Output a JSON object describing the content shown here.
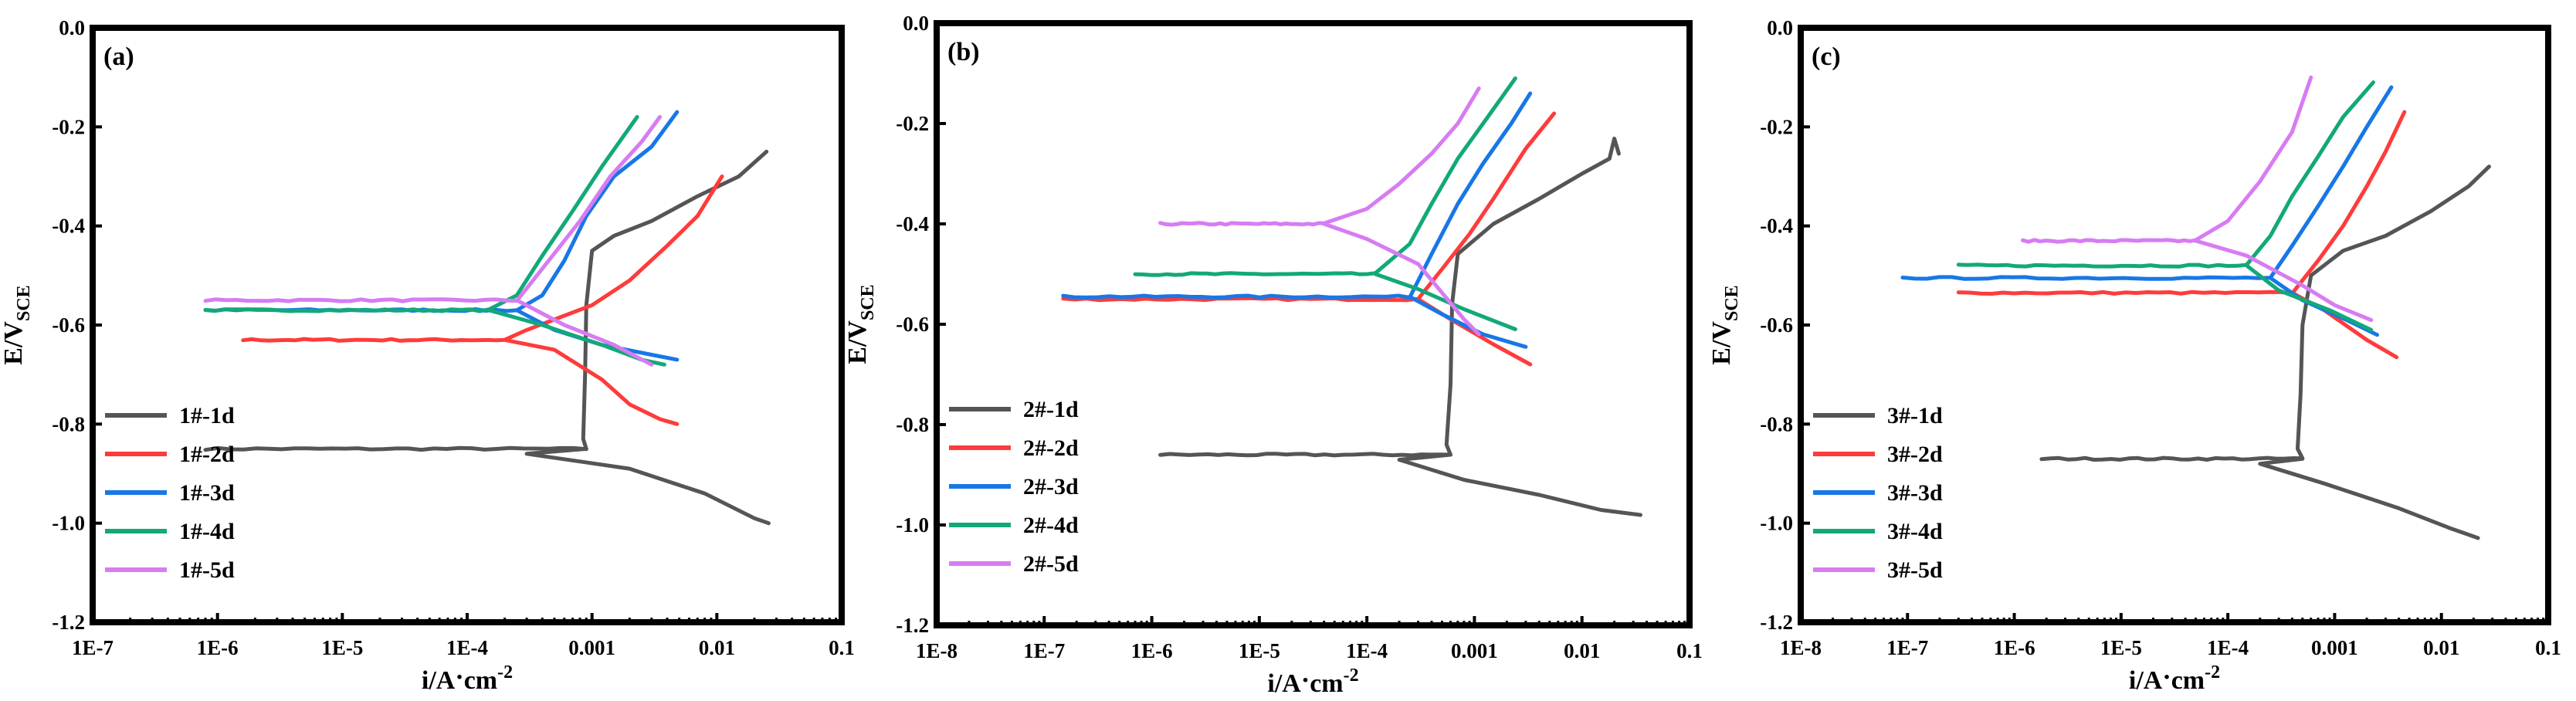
{
  "chart_data": [
    {
      "type": "line",
      "panel_label": "(a)",
      "xscale": "log",
      "xlim": [
        1e-07,
        0.1
      ],
      "ylim": [
        -1.2,
        0.0
      ],
      "xticks": [
        "1E-7",
        "1E-6",
        "1E-5",
        "1E-4",
        "0.001",
        "0.01",
        "0.1"
      ],
      "yticks": [
        "0.0",
        "-0.2",
        "-0.4",
        "-0.6",
        "-0.8",
        "-1.0",
        "-1.2"
      ],
      "xlabel": {
        "main": "i/A",
        "dot": "·",
        "unit": "cm",
        "exp": "-2"
      },
      "ylabel": {
        "main": "E/V",
        "sub": "SCE"
      },
      "legend_position": "bottom-left",
      "series": [
        {
          "name": "1#-1d",
          "color": "#555555",
          "ecorr": -0.85,
          "icorr": 0.0009,
          "x0": 8e-07,
          "anodic": [
            [
              0.00085,
              -0.83
            ],
            [
              0.00088,
              -0.7
            ],
            [
              0.0009,
              -0.56
            ],
            [
              0.001,
              -0.45
            ],
            [
              0.0015,
              -0.42
            ],
            [
              0.003,
              -0.39
            ],
            [
              0.007,
              -0.34
            ],
            [
              0.015,
              -0.3
            ],
            [
              0.025,
              -0.25
            ]
          ],
          "cathodic": [
            [
              0.0003,
              -0.86
            ],
            [
              0.002,
              -0.89
            ],
            [
              0.008,
              -0.94
            ],
            [
              0.02,
              -0.99
            ],
            [
              0.026,
              -1.0
            ]
          ]
        },
        {
          "name": "1#-2d",
          "color": "#ff3b3b",
          "ecorr": -0.63,
          "icorr": 0.0002,
          "x0": 1.6e-06,
          "anodic": [
            [
              0.0003,
              -0.61
            ],
            [
              0.001,
              -0.56
            ],
            [
              0.002,
              -0.51
            ],
            [
              0.004,
              -0.44
            ],
            [
              0.007,
              -0.38
            ],
            [
              0.011,
              -0.3
            ]
          ],
          "cathodic": [
            [
              0.0005,
              -0.65
            ],
            [
              0.0012,
              -0.71
            ],
            [
              0.002,
              -0.76
            ],
            [
              0.0035,
              -0.79
            ],
            [
              0.0048,
              -0.8
            ]
          ]
        },
        {
          "name": "1#-3d",
          "color": "#1877e6",
          "ecorr": -0.57,
          "icorr": 0.00025,
          "x0": 8e-07,
          "anodic": [
            [
              0.0004,
              -0.54
            ],
            [
              0.0006,
              -0.47
            ],
            [
              0.0009,
              -0.38
            ],
            [
              0.0015,
              -0.3
            ],
            [
              0.003,
              -0.24
            ],
            [
              0.0048,
              -0.17
            ]
          ],
          "cathodic": [
            [
              0.0005,
              -0.61
            ],
            [
              0.0012,
              -0.64
            ],
            [
              0.003,
              -0.66
            ],
            [
              0.0048,
              -0.67
            ]
          ]
        },
        {
          "name": "1#-4d",
          "color": "#13a87a",
          "ecorr": -0.57,
          "icorr": 0.00015,
          "x0": 8e-07,
          "anodic": [
            [
              0.00025,
              -0.54
            ],
            [
              0.0004,
              -0.46
            ],
            [
              0.0007,
              -0.37
            ],
            [
              0.0012,
              -0.28
            ],
            [
              0.0023,
              -0.18
            ]
          ],
          "cathodic": [
            [
              0.0004,
              -0.6
            ],
            [
              0.0012,
              -0.64
            ],
            [
              0.0025,
              -0.67
            ],
            [
              0.0038,
              -0.68
            ]
          ]
        },
        {
          "name": "1#-5d",
          "color": "#d77cf2",
          "ecorr": -0.55,
          "icorr": 0.00025,
          "x0": 8e-07,
          "anodic": [
            [
              0.00045,
              -0.47
            ],
            [
              0.0008,
              -0.39
            ],
            [
              0.0014,
              -0.3
            ],
            [
              0.0025,
              -0.23
            ],
            [
              0.0035,
              -0.18
            ]
          ],
          "cathodic": [
            [
              0.0006,
              -0.6
            ],
            [
              0.0015,
              -0.64
            ],
            [
              0.003,
              -0.68
            ]
          ]
        }
      ]
    },
    {
      "type": "line",
      "panel_label": "(b)",
      "xscale": "log",
      "xlim": [
        1e-08,
        0.1
      ],
      "ylim": [
        -1.2,
        0.0
      ],
      "xticks": [
        "1E-8",
        "1E-7",
        "1E-6",
        "1E-5",
        "1E-4",
        "0.001",
        "0.01",
        "0.1"
      ],
      "yticks": [
        "0.0",
        "-0.2",
        "-0.4",
        "-0.6",
        "-0.8",
        "-1.0",
        "-1.2"
      ],
      "xlabel": {
        "main": "i/A",
        "dot": "·",
        "unit": "cm",
        "exp": "-2"
      },
      "ylabel": {
        "main": "E/V",
        "sub": "SCE"
      },
      "legend_position": "bottom-left",
      "series": [
        {
          "name": "2#-1d",
          "color": "#555555",
          "ecorr": -0.86,
          "icorr": 0.0006,
          "x0": 1.2e-06,
          "anodic": [
            [
              0.00055,
              -0.84
            ],
            [
              0.0006,
              -0.72
            ],
            [
              0.00062,
              -0.56
            ],
            [
              0.0007,
              -0.46
            ],
            [
              0.0015,
              -0.4
            ],
            [
              0.004,
              -0.35
            ],
            [
              0.01,
              -0.3
            ],
            [
              0.018,
              -0.27
            ],
            [
              0.02,
              -0.23
            ],
            [
              0.022,
              -0.26
            ]
          ],
          "cathodic": [
            [
              0.0002,
              -0.87
            ],
            [
              0.0008,
              -0.91
            ],
            [
              0.004,
              -0.94
            ],
            [
              0.015,
              -0.97
            ],
            [
              0.035,
              -0.98
            ]
          ]
        },
        {
          "name": "2#-2d",
          "color": "#ff3b3b",
          "ecorr": -0.55,
          "icorr": 0.0003,
          "x0": 1.5e-07,
          "anodic": [
            [
              0.0005,
              -0.49
            ],
            [
              0.0009,
              -0.42
            ],
            [
              0.0015,
              -0.35
            ],
            [
              0.003,
              -0.25
            ],
            [
              0.0055,
              -0.18
            ]
          ],
          "cathodic": [
            [
              0.0006,
              -0.59
            ],
            [
              0.0015,
              -0.64
            ],
            [
              0.0033,
              -0.68
            ]
          ]
        },
        {
          "name": "2#-3d",
          "color": "#1877e6",
          "ecorr": -0.545,
          "icorr": 0.00025,
          "x0": 1.5e-07,
          "anodic": [
            [
              0.0004,
              -0.46
            ],
            [
              0.0007,
              -0.36
            ],
            [
              0.0012,
              -0.28
            ],
            [
              0.0022,
              -0.2
            ],
            [
              0.0033,
              -0.14
            ]
          ],
          "cathodic": [
            [
              0.0005,
              -0.58
            ],
            [
              0.0012,
              -0.62
            ],
            [
              0.003,
              -0.645
            ]
          ]
        },
        {
          "name": "2#-4d",
          "color": "#13a87a",
          "ecorr": -0.5,
          "icorr": 0.00012,
          "x0": 7e-07,
          "anodic": [
            [
              0.00025,
              -0.44
            ],
            [
              0.0004,
              -0.36
            ],
            [
              0.0007,
              -0.27
            ],
            [
              0.0013,
              -0.19
            ],
            [
              0.0024,
              -0.11
            ]
          ],
          "cathodic": [
            [
              0.0003,
              -0.53
            ],
            [
              0.0008,
              -0.57
            ],
            [
              0.0024,
              -0.61
            ]
          ]
        },
        {
          "name": "2#-5d",
          "color": "#d77cf2",
          "ecorr": -0.4,
          "icorr": 4e-05,
          "x0": 1.2e-06,
          "anodic": [
            [
              0.0001,
              -0.37
            ],
            [
              0.0002,
              -0.32
            ],
            [
              0.0004,
              -0.26
            ],
            [
              0.0007,
              -0.2
            ],
            [
              0.0011,
              -0.13
            ]
          ],
          "cathodic": [
            [
              0.0001,
              -0.43
            ],
            [
              0.0003,
              -0.48
            ],
            [
              0.0008,
              -0.59
            ],
            [
              0.0011,
              -0.62
            ]
          ]
        }
      ]
    },
    {
      "type": "line",
      "panel_label": "(c)",
      "xscale": "log",
      "xlim": [
        1e-08,
        0.1
      ],
      "ylim": [
        -1.2,
        0.0
      ],
      "xticks": [
        "1E-8",
        "1E-7",
        "1E-6",
        "1E-5",
        "1E-4",
        "0.001",
        "0.01",
        "0.1"
      ],
      "yticks": [
        "0.0",
        "-0.2",
        "-0.4",
        "-0.6",
        "-0.8",
        "-1.0",
        "-1.2"
      ],
      "xlabel": {
        "main": "i/A",
        "dot": "·",
        "unit": "cm",
        "exp": "-2"
      },
      "ylabel": {
        "main": "E/V",
        "sub": "SCE"
      },
      "legend_position": "bottom-left",
      "series": [
        {
          "name": "3#-1d",
          "color": "#555555",
          "ecorr": -0.87,
          "icorr": 0.0005,
          "x0": 1.8e-06,
          "anodic": [
            [
              0.00045,
              -0.85
            ],
            [
              0.00048,
              -0.74
            ],
            [
              0.0005,
              -0.6
            ],
            [
              0.0006,
              -0.5
            ],
            [
              0.0012,
              -0.45
            ],
            [
              0.003,
              -0.42
            ],
            [
              0.008,
              -0.37
            ],
            [
              0.018,
              -0.32
            ],
            [
              0.028,
              -0.28
            ]
          ],
          "cathodic": [
            [
              0.0002,
              -0.88
            ],
            [
              0.0008,
              -0.92
            ],
            [
              0.004,
              -0.97
            ],
            [
              0.012,
              -1.01
            ],
            [
              0.022,
              -1.03
            ]
          ]
        },
        {
          "name": "3#-2d",
          "color": "#ff3b3b",
          "ecorr": -0.535,
          "icorr": 0.0004,
          "x0": 3e-07,
          "anodic": [
            [
              0.0007,
              -0.47
            ],
            [
              0.0012,
              -0.4
            ],
            [
              0.002,
              -0.32
            ],
            [
              0.003,
              -0.25
            ],
            [
              0.0045,
              -0.17
            ]
          ],
          "cathodic": [
            [
              0.0008,
              -0.57
            ],
            [
              0.002,
              -0.63
            ],
            [
              0.0038,
              -0.665
            ]
          ]
        },
        {
          "name": "3#-3d",
          "color": "#1877e6",
          "ecorr": -0.505,
          "icorr": 0.00025,
          "x0": 9e-08,
          "anodic": [
            [
              0.0004,
              -0.44
            ],
            [
              0.0007,
              -0.36
            ],
            [
              0.0012,
              -0.28
            ],
            [
              0.002,
              -0.2
            ],
            [
              0.0034,
              -0.12
            ]
          ],
          "cathodic": [
            [
              0.0005,
              -0.55
            ],
            [
              0.0013,
              -0.59
            ],
            [
              0.0025,
              -0.62
            ]
          ]
        },
        {
          "name": "3#-4d",
          "color": "#13a87a",
          "ecorr": -0.48,
          "icorr": 0.00015,
          "x0": 3e-07,
          "anodic": [
            [
              0.00025,
              -0.42
            ],
            [
              0.0004,
              -0.34
            ],
            [
              0.0007,
              -0.26
            ],
            [
              0.0012,
              -0.18
            ],
            [
              0.0023,
              -0.11
            ]
          ],
          "cathodic": [
            [
              0.0003,
              -0.53
            ],
            [
              0.0009,
              -0.57
            ],
            [
              0.0022,
              -0.61
            ]
          ]
        },
        {
          "name": "3#-5d",
          "color": "#d77cf2",
          "ecorr": -0.43,
          "icorr": 5e-05,
          "x0": 1.2e-06,
          "anodic": [
            [
              0.0001,
              -0.39
            ],
            [
              0.0002,
              -0.31
            ],
            [
              0.0004,
              -0.21
            ],
            [
              0.0006,
              -0.1
            ]
          ],
          "cathodic": [
            [
              0.00015,
              -0.46
            ],
            [
              0.0005,
              -0.52
            ],
            [
              0.001,
              -0.56
            ],
            [
              0.0022,
              -0.59
            ]
          ]
        }
      ]
    }
  ]
}
